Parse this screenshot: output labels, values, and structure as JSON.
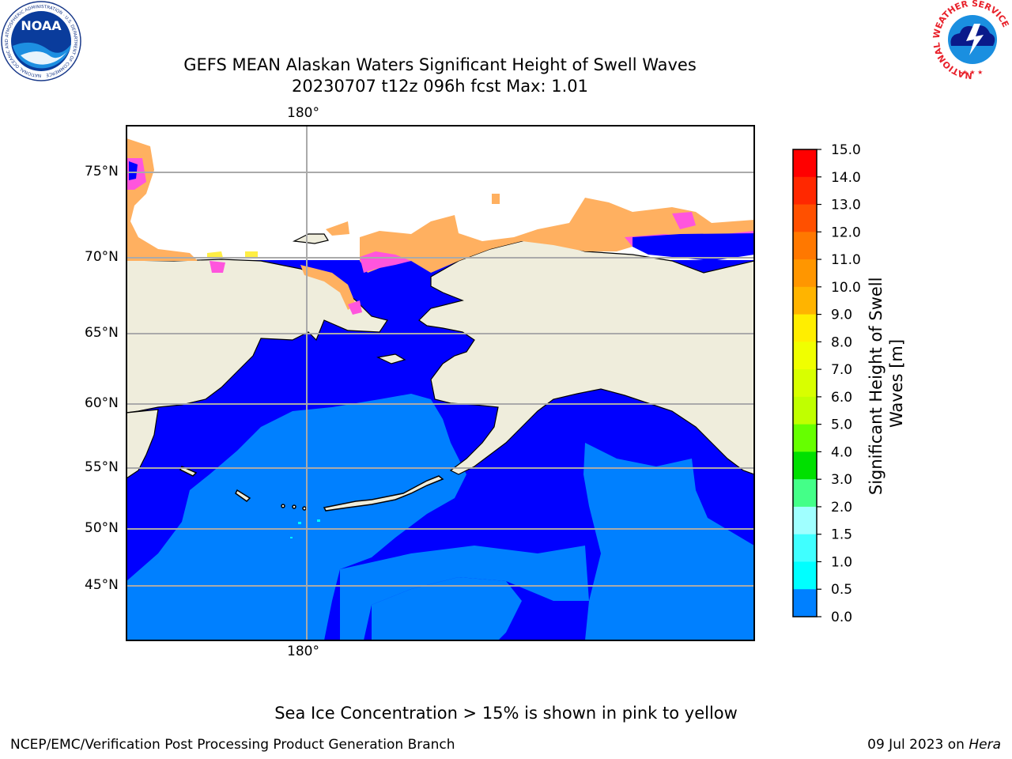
{
  "title": {
    "line1": "GEFS MEAN Alaskan Waters Significant Height of Swell Waves",
    "line2": "20230707 t12z 096h fcst   Max: 1.01"
  },
  "map": {
    "lon_label_top": "180°",
    "lon_label_bottom": "180°",
    "lat_labels": [
      "75°N",
      "70°N",
      "65°N",
      "60°N",
      "55°N",
      "50°N",
      "45°N"
    ],
    "colors": {
      "land": "#efeddc",
      "ocean_low": "#0000ff",
      "ocean_mid": "#0080ff",
      "ice_pink": "#ff55dd",
      "ice_orange": "#ffb060",
      "ice_yellow": "#ffee44"
    }
  },
  "colorbar": {
    "label": "Significant Height of Swell Waves [m]",
    "ticks": [
      "15.0",
      "14.0",
      "13.0",
      "12.0",
      "11.0",
      "10.0",
      "9.0",
      "8.0",
      "7.0",
      "6.0",
      "5.0",
      "4.0",
      "3.0",
      "2.0",
      "1.5",
      "1.0",
      "0.5",
      "0.0"
    ],
    "bins": [
      {
        "color": "#ff0000"
      },
      {
        "color": "#ff2800"
      },
      {
        "color": "#ff5000"
      },
      {
        "color": "#ff7800"
      },
      {
        "color": "#ff9600"
      },
      {
        "color": "#ffb400"
      },
      {
        "color": "#ffee00"
      },
      {
        "color": "#f0ff00"
      },
      {
        "color": "#d8ff00"
      },
      {
        "color": "#c0ff00"
      },
      {
        "color": "#66ff00"
      },
      {
        "color": "#00e000"
      },
      {
        "color": "#44ff88"
      },
      {
        "color": "#a0ffff"
      },
      {
        "color": "#40ffff"
      },
      {
        "color": "#00ffff"
      },
      {
        "color": "#0080ff"
      },
      {
        "color": "#0000ff"
      }
    ]
  },
  "footer": {
    "note": "Sea Ice Concentration > 15% is shown in pink to yellow",
    "left": "NCEP/EMC/Verification Post Processing Product Generation Branch",
    "right_date": "09 Jul 2023 on ",
    "right_host": "Hera"
  },
  "logos": {
    "noaa": "NOAA",
    "noaa_ring": "NATIONAL OCEANIC AND ATMOSPHERIC ADMINISTRATION · U.S. DEPARTMENT OF COMMERCE",
    "nws_ring": "NATIONAL WEATHER SERVICE"
  }
}
